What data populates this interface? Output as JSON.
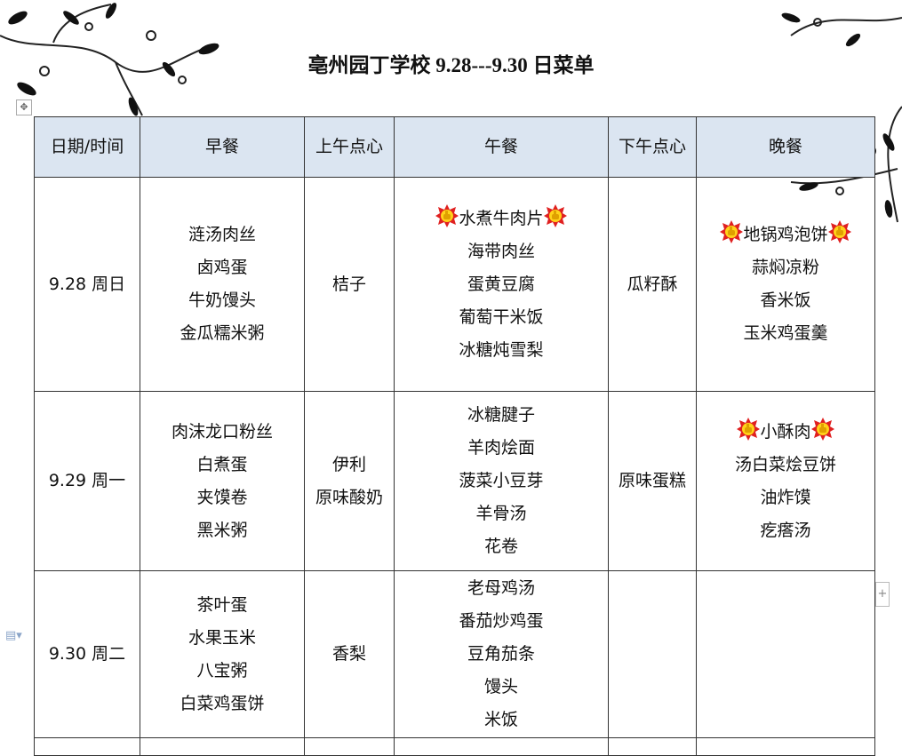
{
  "title": "亳州园丁学校 9.28---9.30 日菜单",
  "headers": [
    "日期/时间",
    "早餐",
    "上午点心",
    "午餐",
    "下午点心",
    "晚餐"
  ],
  "rows": [
    {
      "date": "9.28 周日",
      "breakfast": [
        "涟汤肉丝",
        "卤鸡蛋",
        "牛奶馒头",
        "金瓜糯米粥"
      ],
      "am_snack": [
        "桔子"
      ],
      "lunch": [
        "水煮牛肉片",
        "海带肉丝",
        "蛋黄豆腐",
        "葡萄干米饭",
        "冰糖炖雪梨"
      ],
      "lunch_featured": 0,
      "pm_snack": [
        "瓜籽酥"
      ],
      "dinner": [
        "地锅鸡泡饼",
        "蒜焖凉粉",
        "香米饭",
        "玉米鸡蛋羹"
      ],
      "dinner_featured": 0
    },
    {
      "date": "9.29 周一",
      "breakfast": [
        "肉沫龙口粉丝",
        "白煮蛋",
        "夹馍卷",
        "黑米粥"
      ],
      "am_snack": [
        "伊利",
        "原味酸奶"
      ],
      "lunch": [
        "冰糖腱子",
        "羊肉烩面",
        "菠菜小豆芽",
        "羊骨汤",
        "花卷"
      ],
      "pm_snack": [
        "原味蛋糕"
      ],
      "dinner": [
        "小酥肉",
        "汤白菜烩豆饼",
        "油炸馍",
        "疙瘩汤"
      ],
      "dinner_featured": 0
    },
    {
      "date": "9.30 周二",
      "breakfast": [
        "茶叶蛋",
        "水果玉米",
        "八宝粥",
        "白菜鸡蛋饼"
      ],
      "am_snack": [
        "香梨"
      ],
      "lunch": [
        "老母鸡汤",
        "番茄炒鸡蛋",
        "豆角茄条",
        "馒头",
        "米饭"
      ],
      "pm_snack": [],
      "dinner": []
    }
  ],
  "icons": {
    "featured": "thumbs-up-badge-icon",
    "move": "move-handle-icon",
    "add": "plus-icon",
    "doc": "document-icon"
  },
  "colors": {
    "header_bg": "#dbe5f1",
    "badge_red": "#e02020",
    "badge_yellow": "#ffd21a"
  }
}
